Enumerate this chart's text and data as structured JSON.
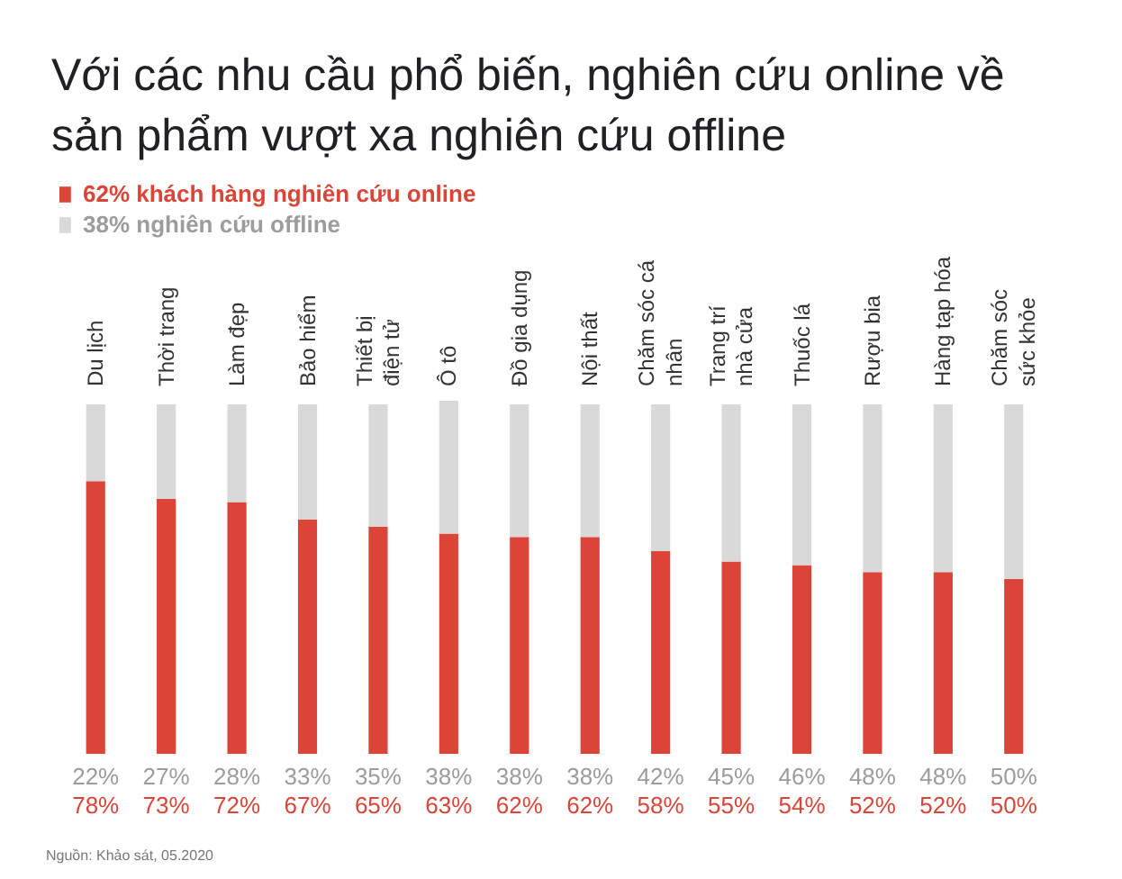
{
  "chart_data": {
    "type": "bar",
    "stacked": true,
    "title": "Với các nhu cầu phổ biến, nghiên cứu online về sản phẩm vượt xa nghiên cứu offline",
    "categories": [
      "Du lịch",
      "Thời trang",
      "Làm đẹp",
      "Bảo hiểm",
      "Thiết bị điện tử",
      "Ô tô",
      "Đồ gia dụng",
      "Nội thất",
      "Chăm sóc cá nhân",
      "Trang trí nhà cửa",
      "Thuốc lá",
      "Rượu bia",
      "Hàng tạp hóa",
      "Chăm sóc sức khỏe"
    ],
    "series": [
      {
        "name": "62% khách hàng nghiên cứu online",
        "color": "#db4437",
        "values": [
          78,
          73,
          72,
          67,
          65,
          63,
          62,
          62,
          58,
          55,
          54,
          52,
          52,
          50
        ],
        "value_labels": [
          "78%",
          "73%",
          "72%",
          "67%",
          "65%",
          "63%",
          "62%",
          "62%",
          "58%",
          "55%",
          "54%",
          "52%",
          "52%",
          "50%"
        ]
      },
      {
        "name": "38% nghiên cứu offline",
        "color": "#d9d9d9",
        "values": [
          22,
          27,
          28,
          33,
          35,
          38,
          38,
          38,
          42,
          45,
          46,
          48,
          48,
          50
        ],
        "value_labels": [
          "22%",
          "27%",
          "28%",
          "33%",
          "35%",
          "38%",
          "38%",
          "38%",
          "42%",
          "45%",
          "46%",
          "48%",
          "48%",
          "50%"
        ]
      }
    ],
    "legend": "top left",
    "tick_labels": "x",
    "grid": false,
    "annotations": [
      "Nguồn: Khảo sát, 05.2020"
    ]
  }
}
